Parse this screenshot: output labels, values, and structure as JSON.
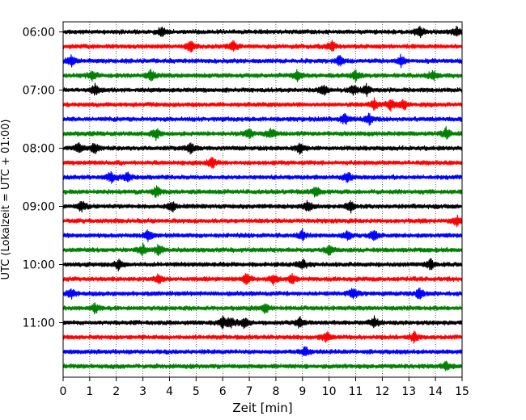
{
  "chart_data": {
    "type": "line",
    "xlabel": "Zeit  [min]",
    "ylabel": "UTC (Lokalzeit = UTC + 01:00)",
    "xlim": [
      0,
      15
    ],
    "x_ticks": [
      "0",
      "1",
      "2",
      "3",
      "4",
      "5",
      "6",
      "7",
      "8",
      "9",
      "10",
      "11",
      "12",
      "13",
      "14",
      "15"
    ],
    "y_tick_labels": [
      "06:00",
      "07:00",
      "08:00",
      "09:00",
      "10:00",
      "11:00"
    ],
    "row_interval_min": 15,
    "row_start": "06:00",
    "row_count": 24,
    "row_colors": [
      "#000000",
      "#ff0000",
      "#0000ff",
      "#008000"
    ],
    "vertical_grid": "dotted",
    "series": [
      {
        "start": "06:00",
        "events_min": [
          3.7,
          13.4,
          14.8
        ]
      },
      {
        "start": "06:15",
        "events_min": [
          4.8,
          6.4,
          10.1
        ]
      },
      {
        "start": "06:30",
        "events_min": [
          0.3,
          10.4,
          12.7
        ]
      },
      {
        "start": "06:45",
        "events_min": [
          1.1,
          3.3,
          8.8,
          11.0,
          13.9
        ]
      },
      {
        "start": "07:00",
        "events_min": [
          1.2,
          9.8,
          10.9,
          11.4
        ]
      },
      {
        "start": "07:15",
        "events_min": [
          11.7,
          12.3,
          12.8
        ]
      },
      {
        "start": "07:30",
        "events_min": [
          10.6,
          11.5
        ]
      },
      {
        "start": "07:45",
        "events_min": [
          3.5,
          7.0,
          7.8,
          14.4
        ]
      },
      {
        "start": "08:00",
        "events_min": [
          0.6,
          1.2,
          4.8,
          8.9
        ]
      },
      {
        "start": "08:15",
        "events_min": [
          5.6
        ]
      },
      {
        "start": "08:30",
        "events_min": [
          1.8,
          2.4,
          10.7
        ]
      },
      {
        "start": "08:45",
        "events_min": [
          3.5,
          9.5
        ]
      },
      {
        "start": "09:00",
        "events_min": [
          0.7,
          4.1,
          9.2,
          10.8
        ]
      },
      {
        "start": "09:15",
        "events_min": [
          14.8
        ]
      },
      {
        "start": "09:30",
        "events_min": [
          3.2,
          9.0,
          10.7,
          11.7
        ]
      },
      {
        "start": "09:45",
        "events_min": [
          3.0,
          3.6,
          10.0
        ]
      },
      {
        "start": "10:00",
        "events_min": [
          2.1,
          9.0,
          13.8
        ]
      },
      {
        "start": "10:15",
        "events_min": [
          3.6,
          6.9,
          7.9,
          8.6
        ]
      },
      {
        "start": "10:30",
        "events_min": [
          0.3,
          10.9,
          13.4
        ]
      },
      {
        "start": "10:45",
        "events_min": [
          1.2,
          7.6
        ]
      },
      {
        "start": "11:00",
        "events_min": [
          6.0,
          6.3,
          6.8,
          8.9,
          11.7
        ]
      },
      {
        "start": "11:15",
        "events_min": [
          9.9,
          13.2
        ]
      },
      {
        "start": "11:30",
        "events_min": [
          9.1
        ]
      },
      {
        "start": "11:45",
        "events_min": [
          14.4
        ]
      }
    ]
  }
}
